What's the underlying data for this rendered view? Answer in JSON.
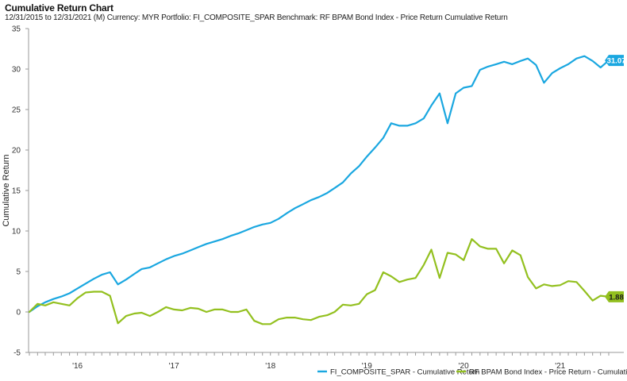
{
  "header": {
    "title": "Cumulative Return Chart",
    "subtitle": "12/31/2015 to 12/31/2021 (M) Currency: MYR Portfolio: FI_COMPOSITE_SPAR Benchmark: RF BPAM Bond Index - Price Return Cumulative Return"
  },
  "chart_data": {
    "type": "line",
    "title": "Cumulative Return Chart",
    "ylabel": "Cumulative Return",
    "xlabel": "",
    "ylim": [
      -5,
      35
    ],
    "yticks": [
      -5,
      0,
      5,
      10,
      15,
      20,
      25,
      30,
      35
    ],
    "grid": false,
    "legend_position": "bottom-right",
    "x_start": "2015-12-31",
    "x_end": "2021-12-31",
    "x_frequency": "monthly",
    "x_tick_labels": [
      {
        "label": "'16",
        "date": "2016-06-30"
      },
      {
        "label": "'17",
        "date": "2017-06-30"
      },
      {
        "label": "'18",
        "date": "2018-06-30"
      },
      {
        "label": "'19",
        "date": "2019-06-30"
      },
      {
        "label": "'20",
        "date": "2020-06-30"
      },
      {
        "label": "'21",
        "date": "2021-06-30"
      }
    ],
    "x": [
      "2015-12-31",
      "2016-01-31",
      "2016-02-29",
      "2016-03-31",
      "2016-04-30",
      "2016-05-31",
      "2016-06-30",
      "2016-07-31",
      "2016-08-31",
      "2016-09-30",
      "2016-10-31",
      "2016-11-30",
      "2016-12-31",
      "2017-01-31",
      "2017-02-28",
      "2017-03-31",
      "2017-04-30",
      "2017-05-31",
      "2017-06-30",
      "2017-07-31",
      "2017-08-31",
      "2017-09-30",
      "2017-10-31",
      "2017-11-30",
      "2017-12-31",
      "2018-01-31",
      "2018-02-28",
      "2018-03-31",
      "2018-04-30",
      "2018-05-31",
      "2018-06-30",
      "2018-07-31",
      "2018-08-31",
      "2018-09-30",
      "2018-10-31",
      "2018-11-30",
      "2018-12-31",
      "2019-01-31",
      "2019-02-28",
      "2019-03-31",
      "2019-04-30",
      "2019-05-31",
      "2019-06-30",
      "2019-07-31",
      "2019-08-31",
      "2019-09-30",
      "2019-10-31",
      "2019-11-30",
      "2019-12-31",
      "2020-01-31",
      "2020-02-29",
      "2020-03-31",
      "2020-04-30",
      "2020-05-31",
      "2020-06-30",
      "2020-07-31",
      "2020-08-31",
      "2020-09-30",
      "2020-10-31",
      "2020-11-30",
      "2020-12-31",
      "2021-01-31",
      "2021-02-28",
      "2021-03-31",
      "2021-04-30",
      "2021-05-31",
      "2021-06-30",
      "2021-07-31",
      "2021-08-31",
      "2021-09-30",
      "2021-10-31",
      "2021-11-30",
      "2021-12-31"
    ],
    "series": [
      {
        "name": "FI_COMPOSITE_SPAR - Cumulative Return",
        "color": "#1aa7e0",
        "end_label": "31.07",
        "values": [
          0.0,
          0.7,
          1.2,
          1.6,
          1.9,
          2.3,
          2.9,
          3.5,
          4.1,
          4.6,
          4.9,
          3.4,
          4.0,
          4.7,
          5.3,
          5.5,
          6.0,
          6.5,
          6.9,
          7.2,
          7.6,
          8.0,
          8.4,
          8.7,
          9.0,
          9.4,
          9.7,
          10.1,
          10.5,
          10.8,
          11.0,
          11.5,
          12.2,
          12.8,
          13.3,
          13.8,
          14.2,
          14.7,
          15.3,
          16.0,
          17.1,
          18.0,
          19.2,
          20.3,
          21.5,
          23.3,
          23.0,
          23.0,
          23.3,
          23.9,
          25.5,
          27.0,
          23.3,
          27.0,
          27.7,
          27.9,
          29.9,
          30.3,
          30.6,
          30.9,
          30.6,
          31.0,
          31.3,
          30.5,
          28.3,
          29.5,
          30.1,
          30.6,
          31.3,
          31.6,
          31.0,
          30.2,
          31.07
        ]
      },
      {
        "name": "RF BPAM Bond Index - Price Return - Cumulative Return",
        "color": "#93c01f",
        "end_label": "1.88",
        "values": [
          0.0,
          1.0,
          0.8,
          1.2,
          1.0,
          0.8,
          1.7,
          2.4,
          2.5,
          2.5,
          2.0,
          -1.4,
          -0.5,
          -0.2,
          -0.1,
          -0.5,
          0.0,
          0.6,
          0.3,
          0.2,
          0.5,
          0.4,
          0.0,
          0.3,
          0.3,
          0.0,
          0.0,
          0.3,
          -1.1,
          -1.5,
          -1.5,
          -0.9,
          -0.7,
          -0.7,
          -0.9,
          -1.0,
          -0.6,
          -0.4,
          0.0,
          0.9,
          0.8,
          1.0,
          2.2,
          2.7,
          4.9,
          4.4,
          3.7,
          4.0,
          4.2,
          5.8,
          7.7,
          4.2,
          7.3,
          7.1,
          6.4,
          9.0,
          8.1,
          7.8,
          7.8,
          6.0,
          7.6,
          7.0,
          4.3,
          2.9,
          3.4,
          3.2,
          3.3,
          3.8,
          3.7,
          2.6,
          1.4,
          2.0,
          1.88
        ]
      }
    ]
  }
}
